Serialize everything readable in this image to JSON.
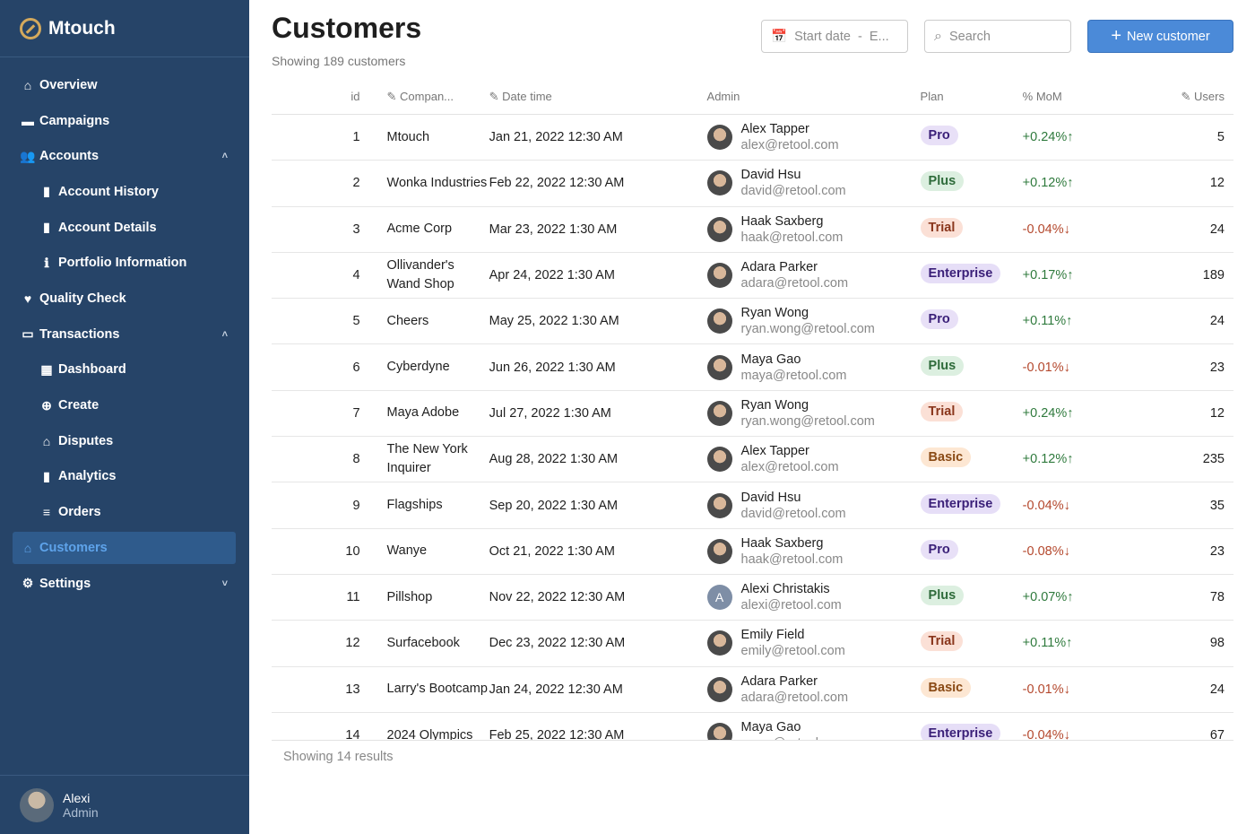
{
  "app": {
    "name": "Mtouch"
  },
  "sidebar": {
    "items": [
      {
        "label": "Overview",
        "icon": "home-icon",
        "glyph": "⌂",
        "sub": false
      },
      {
        "label": "Campaigns",
        "icon": "cake-icon",
        "glyph": "▬",
        "sub": false
      },
      {
        "label": "Accounts",
        "icon": "users-icon",
        "glyph": "👥",
        "sub": false,
        "chevron": "˄"
      },
      {
        "label": "Account History",
        "icon": "book-icon",
        "glyph": "▮",
        "sub": true
      },
      {
        "label": "Account Details",
        "icon": "open-book-icon",
        "glyph": "▮",
        "sub": true
      },
      {
        "label": "Portfolio Information",
        "icon": "info-icon",
        "glyph": "ℹ",
        "sub": true
      },
      {
        "label": "Quality Check",
        "icon": "heart-check-icon",
        "glyph": "♥",
        "sub": false
      },
      {
        "label": "Transactions",
        "icon": "credit-card-icon",
        "glyph": "▭",
        "sub": false,
        "chevron": "˄"
      },
      {
        "label": "Dashboard",
        "icon": "dashboard-icon",
        "glyph": "▦",
        "sub": true
      },
      {
        "label": "Create",
        "icon": "plus-circle-icon",
        "glyph": "⊕",
        "sub": true
      },
      {
        "label": "Disputes",
        "icon": "disputes-icon",
        "glyph": "⌂",
        "sub": true
      },
      {
        "label": "Analytics",
        "icon": "bar-chart-icon",
        "glyph": "▮",
        "sub": true
      },
      {
        "label": "Orders",
        "icon": "orders-icon",
        "glyph": "≡",
        "sub": true
      },
      {
        "label": "Customers",
        "icon": "customers-icon",
        "glyph": "⌂",
        "sub": false,
        "active": true
      },
      {
        "label": "Settings",
        "icon": "gear-icon",
        "glyph": "⚙",
        "sub": false,
        "chevron": "˅"
      }
    ],
    "user": {
      "name": "Alexi",
      "role": "Admin"
    }
  },
  "header": {
    "title": "Customers",
    "subtitle": "Showing 189 customers",
    "date_placeholder": "Start date  -  E...",
    "search_placeholder": "Search",
    "new_button": "New customer"
  },
  "table": {
    "columns": [
      "id",
      "Compan...",
      "Date time",
      "Admin",
      "Plan",
      "% MoM",
      "Users"
    ],
    "rows": [
      {
        "id": "1",
        "company": "Mtouch",
        "date": "Jan 21, 2022 12:30 AM",
        "admin": "Alex Tapper",
        "email": "alex@retool.com",
        "plan": "Pro",
        "mom": "+0.24%↑",
        "users": "5"
      },
      {
        "id": "2",
        "company": "Wonka Industries",
        "date": "Feb 22, 2022 12:30 AM",
        "admin": "David Hsu",
        "email": "david@retool.com",
        "plan": "Plus",
        "mom": "+0.12%↑",
        "users": "12"
      },
      {
        "id": "3",
        "company": "Acme Corp",
        "date": "Mar 23, 2022 1:30 AM",
        "admin": "Haak Saxberg",
        "email": "haak@retool.com",
        "plan": "Trial",
        "mom": "-0.04%↓",
        "users": "24"
      },
      {
        "id": "4",
        "company": "Ollivander's Wand Shop",
        "date": "Apr 24, 2022 1:30 AM",
        "admin": "Adara Parker",
        "email": "adara@retool.com",
        "plan": "Enterprise",
        "mom": "+0.17%↑",
        "users": "189"
      },
      {
        "id": "5",
        "company": "Cheers",
        "date": "May 25, 2022 1:30 AM",
        "admin": "Ryan Wong",
        "email": "ryan.wong@retool.com",
        "plan": "Pro",
        "mom": "+0.11%↑",
        "users": "24"
      },
      {
        "id": "6",
        "company": "Cyberdyne",
        "date": "Jun 26, 2022 1:30 AM",
        "admin": "Maya Gao",
        "email": "maya@retool.com",
        "plan": "Plus",
        "mom": "-0.01%↓",
        "users": "23"
      },
      {
        "id": "7",
        "company": "Maya Adobe",
        "date": "Jul 27, 2022 1:30 AM",
        "admin": "Ryan Wong",
        "email": "ryan.wong@retool.com",
        "plan": "Trial",
        "mom": "+0.24%↑",
        "users": "12"
      },
      {
        "id": "8",
        "company": "The New York Inquirer",
        "date": "Aug 28, 2022 1:30 AM",
        "admin": "Alex Tapper",
        "email": "alex@retool.com",
        "plan": "Basic",
        "mom": "+0.12%↑",
        "users": "235"
      },
      {
        "id": "9",
        "company": "Flagships",
        "date": "Sep 20, 2022 1:30 AM",
        "admin": "David Hsu",
        "email": "david@retool.com",
        "plan": "Enterprise",
        "mom": "-0.04%↓",
        "users": "35"
      },
      {
        "id": "10",
        "company": "Wanye",
        "date": "Oct 21, 2022 1:30 AM",
        "admin": "Haak Saxberg",
        "email": "haak@retool.com",
        "plan": "Pro",
        "mom": "-0.08%↓",
        "users": "23"
      },
      {
        "id": "11",
        "company": "Pillshop",
        "date": "Nov 22, 2022 12:30 AM",
        "admin": "Alexi Christakis",
        "email": "alexi@retool.com",
        "plan": "Plus",
        "mom": "+0.07%↑",
        "users": "78",
        "initial": "A"
      },
      {
        "id": "12",
        "company": "Surfacebook",
        "date": "Dec 23, 2022 12:30 AM",
        "admin": "Emily Field",
        "email": "emily@retool.com",
        "plan": "Trial",
        "mom": "+0.11%↑",
        "users": "98"
      },
      {
        "id": "13",
        "company": "Larry's Bootcamp",
        "date": "Jan 24, 2022 12:30 AM",
        "admin": "Adara Parker",
        "email": "adara@retool.com",
        "plan": "Basic",
        "mom": "-0.01%↓",
        "users": "24"
      },
      {
        "id": "14",
        "company": "2024 Olympics",
        "date": "Feb 25, 2022 12:30 AM",
        "admin": "Maya Gao",
        "email": "maya@retool.com",
        "plan": "Enterprise",
        "mom": "-0.04%↓",
        "users": "67"
      }
    ],
    "footer": "Showing 14 results"
  },
  "colors": {
    "sidebar": "#264468",
    "accent": "#4b8ad8",
    "positive": "#2f7a3d",
    "negative": "#b4482d",
    "plans": {
      "Pro": [
        "#e8e0f7",
        "#3a1f78"
      ],
      "Plus": [
        "#dcefe0",
        "#2e6b3a"
      ],
      "Trial": [
        "#fbe0d6",
        "#8a361c"
      ],
      "Basic": [
        "#fde7d3",
        "#8a4a15"
      ],
      "Enterprise": [
        "#e6def7",
        "#3a1f78"
      ]
    }
  }
}
